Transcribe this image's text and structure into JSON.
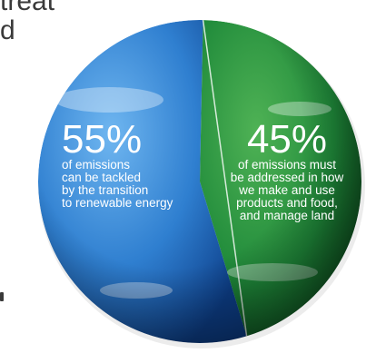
{
  "background_text": [
    "treat",
    "d"
  ],
  "colors": {
    "ocean": "#2f7fd0",
    "land_green": "#1f8a3a",
    "text": "#ffffff"
  },
  "chart_data": {
    "type": "pie",
    "title": "",
    "slices": [
      {
        "label": "55%",
        "value": 55,
        "description": [
          "of emissions",
          "can be tackled",
          "by the transition",
          "to renewable energy"
        ],
        "color": "#2f7fd0"
      },
      {
        "label": "45%",
        "value": 45,
        "description": [
          "of emissions must",
          "be addressed in how",
          "we make and use",
          "products and food,",
          "and manage land"
        ],
        "color": "#1f8a3a"
      }
    ]
  }
}
